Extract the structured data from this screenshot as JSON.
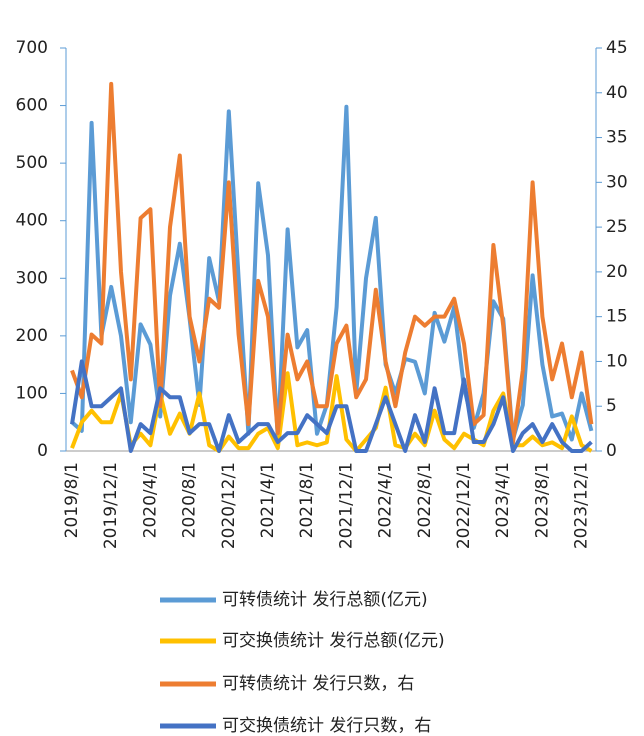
{
  "chart_data": {
    "type": "line",
    "categories": [
      "2019/8/1",
      null,
      null,
      null,
      "2019/12/1",
      null,
      null,
      null,
      "2020/4/1",
      null,
      null,
      null,
      "2020/8/1",
      null,
      null,
      null,
      "2020/12/1",
      null,
      null,
      null,
      "2021/4/1",
      null,
      null,
      null,
      "2021/8/1",
      null,
      null,
      null,
      "2021/12/1",
      null,
      null,
      null,
      "2022/4/1",
      null,
      null,
      null,
      "2022/8/1",
      null,
      null,
      null,
      "2022/12/1",
      null,
      null,
      null,
      "2023/4/1",
      null,
      null,
      null,
      "2023/8/1",
      null,
      null,
      null,
      "2023/12/1",
      null
    ],
    "series": [
      {
        "name": "可转债统计 发行总额(亿元)",
        "color": "#5b9bd5",
        "values": [
          50,
          35,
          570,
          200,
          285,
          200,
          50,
          220,
          185,
          60,
          270,
          360,
          230,
          80,
          335,
          260,
          590,
          300,
          30,
          465,
          340,
          20,
          385,
          180,
          210,
          30,
          80,
          250,
          598,
          100,
          300,
          405,
          150,
          100,
          160,
          155,
          100,
          240,
          190,
          250,
          110,
          40,
          100,
          260,
          230,
          20,
          80,
          305,
          150,
          60,
          65,
          20,
          100,
          35
        ]
      },
      {
        "name": "可交换债统计 发行总额(亿元)",
        "color": "#ffc000",
        "values": [
          5,
          50,
          70,
          50,
          50,
          100,
          10,
          30,
          10,
          100,
          30,
          65,
          30,
          100,
          10,
          0,
          25,
          5,
          5,
          30,
          40,
          5,
          135,
          10,
          15,
          10,
          15,
          130,
          20,
          0,
          20,
          40,
          110,
          10,
          5,
          30,
          10,
          70,
          20,
          5,
          30,
          20,
          10,
          70,
          100,
          10,
          10,
          25,
          10,
          15,
          5,
          60,
          10,
          0
        ]
      },
      {
        "name": "可转债统计 发行只数，右",
        "color": "#ed7d31",
        "axis": "y2",
        "values": [
          9,
          6,
          13,
          12,
          41,
          20,
          8,
          26,
          27,
          5,
          25,
          33,
          15,
          10,
          17,
          16,
          30,
          13,
          3,
          19,
          15,
          2,
          13,
          8,
          10,
          5,
          5,
          12,
          14,
          6,
          8,
          18,
          10,
          5,
          11,
          15,
          14,
          15,
          15,
          17,
          12,
          3,
          4,
          23,
          14,
          1,
          9,
          30,
          15,
          8,
          12,
          6,
          11,
          3
        ]
      },
      {
        "name": "可交换债统计 发行只数，右",
        "color": "#4472c4",
        "axis": "y2",
        "values": [
          3,
          10,
          5,
          5,
          6,
          7,
          0,
          3,
          2,
          7,
          6,
          6,
          2,
          3,
          3,
          0,
          4,
          1,
          2,
          3,
          3,
          1,
          2,
          2,
          4,
          3,
          2,
          5,
          5,
          0,
          0,
          3,
          6,
          3,
          0,
          4,
          1,
          7,
          2,
          2,
          8,
          1,
          1,
          3,
          6,
          0,
          2,
          3,
          1,
          3,
          1,
          0,
          0,
          1
        ]
      }
    ],
    "ylim": [
      0,
      700
    ],
    "yticks": [
      0,
      100,
      200,
      300,
      400,
      500,
      600,
      700
    ],
    "y2lim": [
      0,
      45
    ],
    "y2ticks": [
      0,
      5,
      10,
      15,
      20,
      25,
      30,
      35,
      40,
      45
    ],
    "legend": "bottom"
  }
}
